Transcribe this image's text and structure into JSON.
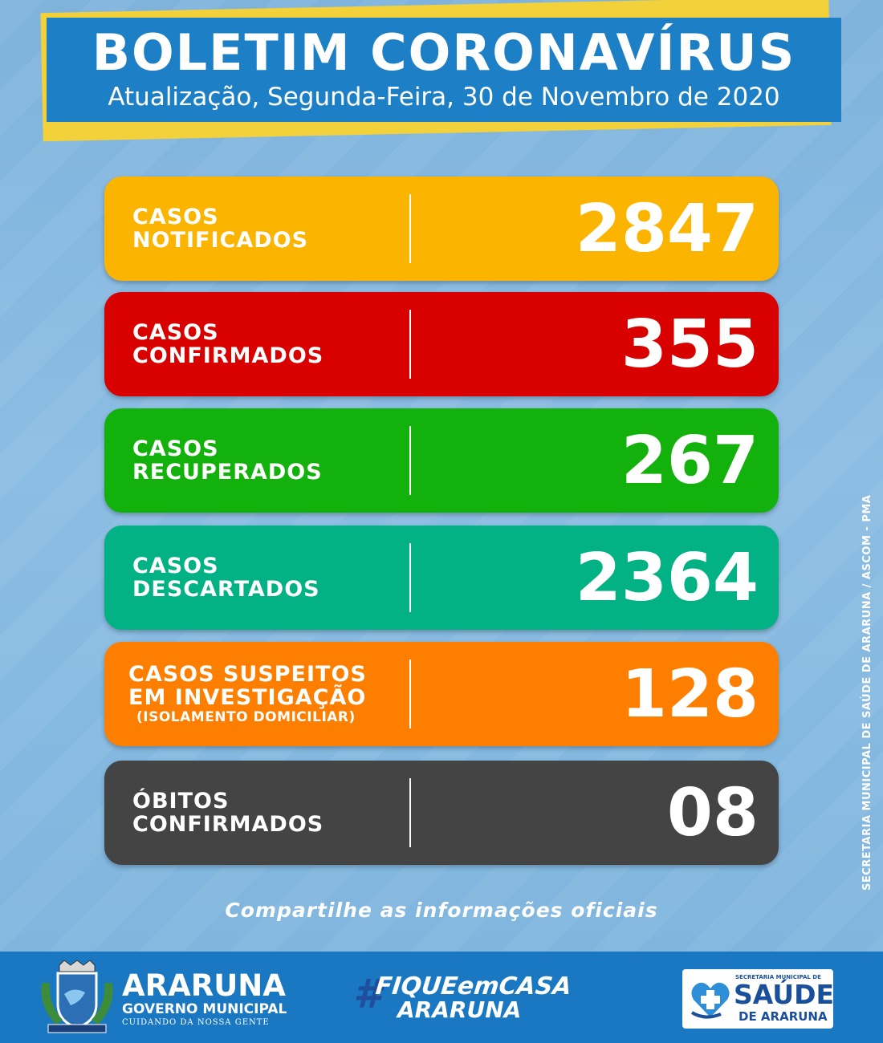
{
  "header": {
    "title": "BOLETIM CORONAVÍRUS",
    "subtitle": "Atualização, Segunda-Feira, 30 de Novembro de 2020"
  },
  "cards": [
    {
      "line1": "CASOS",
      "line2": "NOTIFICADOS",
      "value": "2847",
      "color": "#fbb400"
    },
    {
      "line1": "CASOS",
      "line2": "CONFIRMADOS",
      "value": "355",
      "color": "#d90000"
    },
    {
      "line1": "CASOS",
      "line2": "RECUPERADOS",
      "value": "267",
      "color": "#13b10b"
    },
    {
      "line1": "CASOS",
      "line2": "DESCARTADOS",
      "value": "2364",
      "color": "#02b184"
    },
    {
      "line1": "CASOS SUSPEITOS",
      "line2": "EM INVESTIGAÇÃO",
      "line3": "(ISOLAMENTO DOMICILIAR)",
      "value": "128",
      "color": "#fe7f00"
    },
    {
      "line1": "ÓBITOS",
      "line2": "CONFIRMADOS",
      "value": "08",
      "color": "#444444"
    }
  ],
  "share_text": "Compartilhe as informações oficiais",
  "side_credit": "SECRETARIA MUNICIPAL DE SAÚDE DE ARARUNA / ASCOM - PMA",
  "footer": {
    "araruna_name": "ARARUNA",
    "araruna_gov": "GOVERNO MUNICIPAL",
    "araruna_slogan": "CUIDANDO DA NOSSA GENTE",
    "hashtag_symbol": "#",
    "hashtag_line1": "FIQUEemCASA",
    "hashtag_line2": "ARARUNA",
    "saude_top": "SECRETARIA MUNICIPAL DE",
    "saude_big": "SAÚDE",
    "saude_sub": "DE ARARUNA"
  },
  "colors": {
    "header_blue": "#1d80c6",
    "header_accent": "#f2d13a",
    "footer_blue": "#1a78c2"
  }
}
